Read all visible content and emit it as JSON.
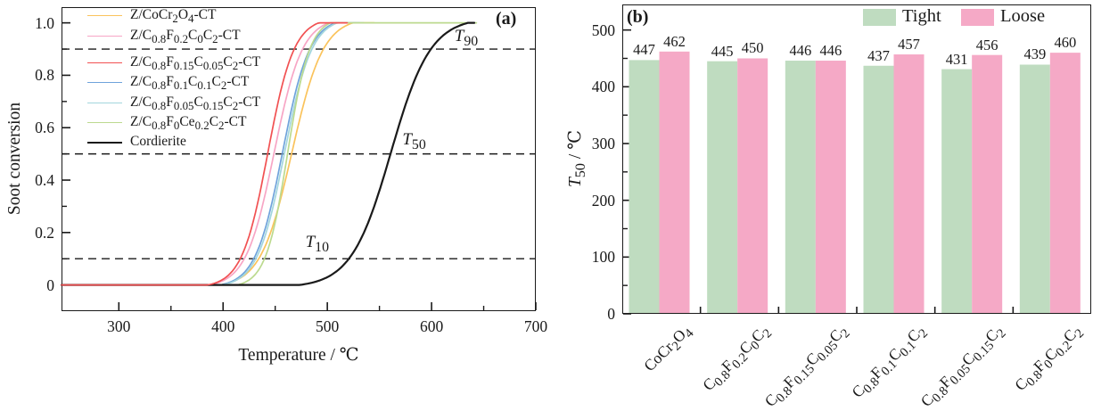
{
  "chart_data": [
    {
      "type": "line",
      "panel": "a",
      "panel_label": "(a)",
      "title": "",
      "xlabel": "Temperature / ℃",
      "ylabel": "Soot conversion",
      "xlim": [
        245,
        700
      ],
      "ylim": [
        -0.1,
        1.06
      ],
      "x_major_ticks": [
        300,
        400,
        500,
        600,
        700
      ],
      "x_minor_ticks": [
        350,
        450,
        550,
        650
      ],
      "y_major_ticks": [
        0,
        0.2,
        0.4,
        0.6,
        0.8,
        1.0
      ],
      "y_major_tick_labels": [
        "0",
        "0.2",
        "0.4",
        "0.6",
        "0.8",
        "1.0"
      ],
      "y_minor_ticks": [
        0.1,
        0.3,
        0.5,
        0.7,
        0.9
      ],
      "grid": false,
      "legend_position": "upper-left-inside",
      "dashed_reference_lines": [
        0.1,
        0.5,
        0.9
      ],
      "annotations": [
        {
          "label": "T10",
          "label_html": "<i>T</i><sub>10</sub>",
          "t": 479,
          "v": 0.2
        },
        {
          "label": "T50",
          "label_html": "<i>T</i><sub>50</sub>",
          "t": 572,
          "v": 0.59
        },
        {
          "label": "T90",
          "label_html": "<i>T</i><sub>90</sub>",
          "t": 622,
          "v": 0.985
        }
      ],
      "series": [
        {
          "name": "Z/CoCr2O4-CT",
          "name_html": "Z/CoCr<sub>2</sub>O<sub>4</sub>-CT",
          "color": "#FAC35C",
          "T10": 438,
          "T50": 464,
          "T90": 518,
          "logistic": {
            "t50": 466,
            "s": 15
          },
          "x_start": 245,
          "x_end": 545
        },
        {
          "name": "Z/C0.8F0.2C0C2-CT",
          "name_html": "Z/C<sub>0.8</sub>F<sub>0.2</sub>C<sub>0</sub>C<sub>2</sub>-CT",
          "color": "#F7A6C5",
          "T10": 424,
          "T50": 447,
          "T90": 490,
          "logistic": {
            "t50": 449,
            "s": 13.5
          },
          "x_start": 245,
          "x_end": 528
        },
        {
          "name": "Z/C0.8F0.15C0.05C2-CT",
          "name_html": "Z/C<sub>0.8</sub>F<sub>0.15</sub>C<sub>0.05</sub>C<sub>2</sub>-CT",
          "color": "#F15152",
          "T10": 420,
          "T50": 440,
          "T90": 475,
          "logistic": {
            "t50": 443,
            "s": 12.5
          },
          "x_start": 245,
          "x_end": 520
        },
        {
          "name": "Z/C0.8F0.1C0.1C2-CT",
          "name_html": "Z/C<sub>0.8</sub>F<sub>0.1</sub>C<sub>0.1</sub>C<sub>2</sub>-CT",
          "color": "#6FA3DB",
          "T10": 431,
          "T50": 456,
          "T90": 492,
          "logistic": {
            "t50": 457,
            "s": 13
          },
          "x_start": 245,
          "x_end": 532
        },
        {
          "name": "Z/C0.8F0.05C0.15C2-CT",
          "name_html": "Z/C<sub>0.8</sub>F<sub>0.05</sub>C<sub>0.15</sub>C<sub>2</sub>-CT",
          "color": "#A3D6DD",
          "T10": 434,
          "T50": 458,
          "T90": 494,
          "logistic": {
            "t50": 459,
            "s": 13
          },
          "x_start": 245,
          "x_end": 535
        },
        {
          "name": "Z/C0.8F0Ce0.2C2-CT",
          "name_html": "Z/C<sub>0.8</sub>F<sub>0</sub>Ce<sub>0.2</sub>C<sub>2</sub>-CT",
          "color": "#BCDA8F",
          "T10": 442,
          "T50": 462,
          "T90": 488,
          "logistic": {
            "t50": 462,
            "s": 10.5
          },
          "x_start": 245,
          "x_end": 644
        },
        {
          "name": "Cordierite",
          "name_html": "Cordierite",
          "color": "#1a1a1a",
          "T10": 502,
          "T50": 564,
          "T90": 600,
          "logistic": {
            "t50": 561,
            "s": 19
          },
          "x_start": 245,
          "x_end": 642
        }
      ],
      "draw_order": [
        0,
        1,
        3,
        4,
        5,
        6,
        2
      ]
    },
    {
      "type": "grouped_bar",
      "panel": "b",
      "panel_label": "(b)",
      "title": "",
      "xlabel": "",
      "ylabel": "T50 / ℃",
      "ylabel_html": "<i>T</i><sub>50</sub> / ℃",
      "ylim": [
        0,
        545
      ],
      "y_major_ticks": [
        0,
        100,
        200,
        300,
        400,
        500
      ],
      "y_minor_ticks": [
        50,
        150,
        250,
        350,
        450
      ],
      "grid": false,
      "legend_position": "top-right-inside",
      "bar_value_labels": true,
      "categories": [
        "CoCr2O4",
        "C0.8F0.2C0C2",
        "C0.8F0.15C0.05C2",
        "C0.8F0.1C0.1C2",
        "C0.8F0.05C0.15C2",
        "C0.8F0C0.2C2"
      ],
      "categories_html": [
        "CoCr<sub>2</sub>O<sub>4</sub>",
        "C<sub>0.8</sub>F<sub>0.2</sub>C<sub>0</sub>C<sub>2</sub>",
        "C<sub>0.8</sub>F<sub>0.15</sub>C<sub>0.05</sub>C<sub>2</sub>",
        "C<sub>0.8</sub>F<sub>0.1</sub>C<sub>0.1</sub>C<sub>2</sub>",
        "C<sub>0.8</sub>F<sub>0.05</sub>C<sub>0.15</sub>C<sub>2</sub>",
        "C<sub>0.8</sub>F<sub>0</sub>C<sub>0.2</sub>C<sub>2</sub>"
      ],
      "series": [
        {
          "name": "Tight",
          "color": "#BFDCC0",
          "values": [
            447,
            445,
            446,
            437,
            431,
            439
          ]
        },
        {
          "name": "Loose",
          "color": "#F5A9C6",
          "values": [
            462,
            450,
            446,
            457,
            456,
            460
          ]
        }
      ]
    }
  ]
}
